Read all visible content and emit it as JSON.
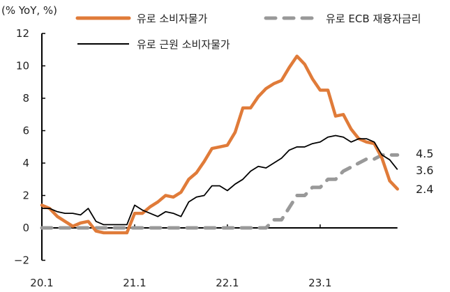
{
  "chart_data": {
    "type": "line",
    "title": "",
    "unit_label": "(% YoY, %)",
    "xlabel": "",
    "ylabel": "(% YoY, %)",
    "ylim": [
      -2,
      12
    ],
    "yticks": [
      -2,
      0,
      2,
      4,
      6,
      8,
      10,
      12
    ],
    "xtick_labels": [
      "20.1",
      "21.1",
      "22.1",
      "23.1"
    ],
    "grid": false,
    "legend_position": "top",
    "x": [
      "20.1",
      "20.2",
      "20.3",
      "20.4",
      "20.5",
      "20.6",
      "20.7",
      "20.8",
      "20.9",
      "20.10",
      "20.11",
      "20.12",
      "21.1",
      "21.2",
      "21.3",
      "21.4",
      "21.5",
      "21.6",
      "21.7",
      "21.8",
      "21.9",
      "21.10",
      "21.11",
      "21.12",
      "22.1",
      "22.2",
      "22.3",
      "22.4",
      "22.5",
      "22.6",
      "22.7",
      "22.8",
      "22.9",
      "22.10",
      "22.11",
      "22.12",
      "23.1",
      "23.2",
      "23.3",
      "23.4",
      "23.5",
      "23.6",
      "23.7",
      "23.8",
      "23.9",
      "23.10",
      "23.11"
    ],
    "series": [
      {
        "name": "유로 소비자물가",
        "color": "#E07B39",
        "style": "solid-thick",
        "values": [
          1.4,
          1.2,
          0.7,
          0.4,
          0.1,
          0.3,
          0.4,
          -0.2,
          -0.3,
          -0.3,
          -0.3,
          -0.3,
          0.9,
          0.9,
          1.3,
          1.6,
          2.0,
          1.9,
          2.2,
          3.0,
          3.4,
          4.1,
          4.9,
          5.0,
          5.1,
          5.9,
          7.4,
          7.4,
          8.1,
          8.6,
          8.9,
          9.1,
          9.9,
          10.6,
          10.1,
          9.2,
          8.5,
          8.5,
          6.9,
          7.0,
          6.1,
          5.5,
          5.3,
          5.2,
          4.3,
          2.9,
          2.4
        ]
      },
      {
        "name": "유로 근원 소비자물가",
        "color": "#000000",
        "style": "solid-thin",
        "values": [
          1.2,
          1.2,
          1.0,
          0.9,
          0.9,
          0.8,
          1.2,
          0.4,
          0.2,
          0.2,
          0.2,
          0.2,
          1.4,
          1.1,
          0.9,
          0.7,
          1.0,
          0.9,
          0.7,
          1.6,
          1.9,
          2.0,
          2.6,
          2.6,
          2.3,
          2.7,
          3.0,
          3.5,
          3.8,
          3.7,
          4.0,
          4.3,
          4.8,
          5.0,
          5.0,
          5.2,
          5.3,
          5.6,
          5.7,
          5.6,
          5.3,
          5.5,
          5.5,
          5.3,
          4.5,
          4.2,
          3.6
        ]
      },
      {
        "name": "유로 ECB 재융자금리",
        "color": "#999999",
        "style": "dashed",
        "values": [
          0,
          0,
          0,
          0,
          0,
          0,
          0,
          0,
          0,
          0,
          0,
          0,
          0,
          0,
          0,
          0,
          0,
          0,
          0,
          0,
          0,
          0,
          0,
          0,
          0,
          0,
          0,
          0,
          0,
          0,
          0.5,
          0.5,
          1.25,
          2.0,
          2.0,
          2.5,
          2.5,
          3.0,
          3.0,
          3.5,
          3.75,
          4.0,
          4.25,
          4.25,
          4.5,
          4.5,
          4.5
        ]
      }
    ],
    "annotations": [
      {
        "text": "4.5",
        "series": "유로 ECB 재융자금리"
      },
      {
        "text": "3.6",
        "series": "유로 근원 소비자물가"
      },
      {
        "text": "2.4",
        "series": "유로 소비자물가"
      }
    ]
  },
  "legend": {
    "items": [
      {
        "label": "유로 소비자물가",
        "color": "#E07B39"
      },
      {
        "label": "유로 ECB 재융자금리",
        "color": "#999999"
      },
      {
        "label": "유로 근원 소비자물가",
        "color": "#000000"
      }
    ]
  }
}
